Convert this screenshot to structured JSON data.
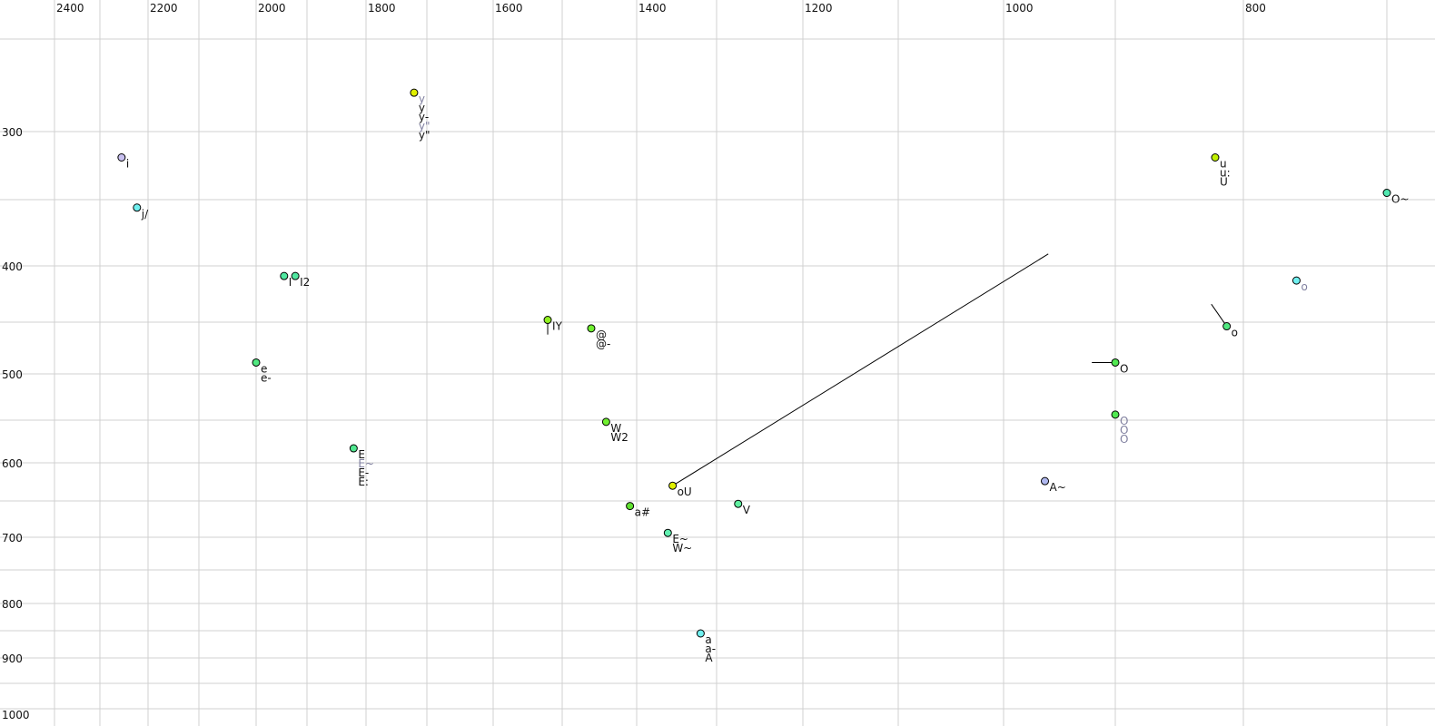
{
  "chart_data": {
    "type": "scatter",
    "title": "",
    "xlabel": "",
    "ylabel": "",
    "x_axis": {
      "reversed": true,
      "position": "top",
      "grid_step": 100,
      "tick_labels": [
        "2400",
        "2200",
        "2000",
        "1800",
        "1600",
        "1400",
        "1200",
        "1000",
        "800"
      ],
      "range": [
        2470,
        680
      ]
    },
    "y_axis": {
      "reversed": false,
      "position": "left",
      "tick_labels": [
        "300",
        "400",
        "500",
        "600",
        "700",
        "800",
        "900",
        "1000"
      ],
      "grid_values": [
        250,
        300,
        350,
        400,
        450,
        500,
        550,
        600,
        650,
        700,
        750,
        800,
        850,
        900,
        950,
        1000
      ],
      "range": [
        220,
        1010
      ]
    },
    "grid": true,
    "points": [
      {
        "f2": 2255,
        "f1": 319,
        "color": "#c8c0f0",
        "labels": [
          {
            "t": "i",
            "grey": false
          }
        ]
      },
      {
        "f2": 2223,
        "f1": 356,
        "color": "#70f0f0",
        "labels": [
          {
            "t": "j/",
            "grey": false
          }
        ]
      },
      {
        "f2": 1945,
        "f1": 409,
        "color": "#50e8a0",
        "labels": [
          {
            "t": "I",
            "grey": false
          }
        ]
      },
      {
        "f2": 1923,
        "f1": 409,
        "color": "#50e8a0",
        "labels": [
          {
            "t": "I2",
            "grey": false
          }
        ]
      },
      {
        "f2": 2000,
        "f1": 489,
        "color": "#50e880",
        "labels": [
          {
            "t": "e",
            "grey": false
          },
          {
            "t": "e-",
            "grey": false
          }
        ]
      },
      {
        "f2": 1821,
        "f1": 583,
        "color": "#50e890",
        "labels": [
          {
            "t": "E",
            "grey": false
          },
          {
            "t": "E~",
            "grey": true
          },
          {
            "t": "E-",
            "grey": false
          },
          {
            "t": "E:",
            "grey": false
          }
        ]
      },
      {
        "f2": 1721,
        "f1": 279,
        "color": "#e0f000",
        "labels": [
          {
            "t": "y",
            "grey": true
          },
          {
            "t": "y",
            "grey": false
          },
          {
            "t": "y-",
            "grey": false
          },
          {
            "t": "y\"",
            "grey": true
          },
          {
            "t": "y\"",
            "grey": false
          }
        ]
      },
      {
        "f2": 1521,
        "f1": 448,
        "color": "#90f020",
        "labels": [
          {
            "t": "IY",
            "grey": false
          }
        ],
        "trajectory": [
          1521,
          462
        ]
      },
      {
        "f2": 1461,
        "f1": 456,
        "color": "#70f030",
        "labels": [
          {
            "t": "@",
            "grey": false
          },
          {
            "t": "@-",
            "grey": false
          }
        ]
      },
      {
        "f2": 1441,
        "f1": 552,
        "color": "#70f030",
        "labels": [
          {
            "t": "W",
            "grey": false
          },
          {
            "t": "W2",
            "grey": false
          }
        ]
      },
      {
        "f2": 1355,
        "f1": 630,
        "color": "#e0f000",
        "labels": [
          {
            "t": "oU",
            "grey": false
          }
        ],
        "trajectory": [
          960,
          391
        ]
      },
      {
        "f2": 1409,
        "f1": 657,
        "color": "#60e030",
        "labels": [
          {
            "t": "a#",
            "grey": false
          }
        ]
      },
      {
        "f2": 1275,
        "f1": 654,
        "color": "#60f0a0",
        "labels": [
          {
            "t": "V",
            "grey": false
          }
        ]
      },
      {
        "f2": 1361,
        "f1": 694,
        "color": "#60f0b0",
        "labels": [
          {
            "t": "E~",
            "grey": false
          },
          {
            "t": "W~",
            "grey": false
          }
        ]
      },
      {
        "f2": 1320,
        "f1": 855,
        "color": "#70f0f0",
        "labels": [
          {
            "t": "a",
            "grey": false
          },
          {
            "t": "a-",
            "grey": false
          },
          {
            "t": "A",
            "grey": false
          }
        ]
      },
      {
        "f2": 963,
        "f1": 624,
        "color": "#b0b8f0",
        "labels": [
          {
            "t": "A~",
            "grey": false
          }
        ]
      },
      {
        "f2": 900,
        "f1": 489,
        "color": "#50e850",
        "labels": [
          {
            "t": "O",
            "grey": false
          }
        ],
        "trajectory": [
          921,
          489
        ]
      },
      {
        "f2": 900,
        "f1": 544,
        "color": "#50e850",
        "labels": [
          {
            "t": "O",
            "grey": true
          },
          {
            "t": "O",
            "grey": true
          },
          {
            "t": "O",
            "grey": true
          }
        ]
      },
      {
        "f2": 813,
        "f1": 454,
        "color": "#50e880",
        "labels": [
          {
            "t": "o",
            "grey": false
          }
        ],
        "trajectory": [
          825,
          434
        ]
      },
      {
        "f2": 763,
        "f1": 413,
        "color": "#70f0f0",
        "labels": [
          {
            "t": "o",
            "grey": true
          }
        ]
      },
      {
        "f2": 822,
        "f1": 319,
        "color": "#c0f000",
        "labels": [
          {
            "t": "u",
            "grey": false
          },
          {
            "t": "u:",
            "grey": false
          },
          {
            "t": "U",
            "grey": false
          }
        ]
      },
      {
        "f2": 700,
        "f1": 345,
        "color": "#50e8b0",
        "labels": [
          {
            "t": "O~",
            "grey": false
          }
        ]
      }
    ]
  },
  "colors": {
    "grid": "#d0d0d0",
    "grey_label": "#8080a0",
    "label": "#111111"
  }
}
